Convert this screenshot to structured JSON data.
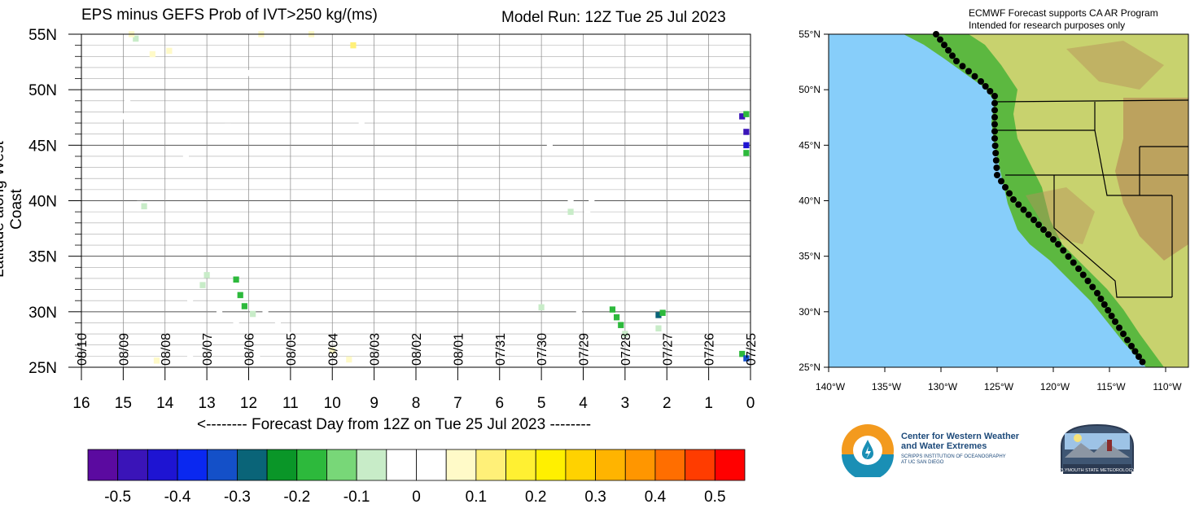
{
  "title_left": "EPS minus GEFS Prob of IVT>250 kg/(ms)",
  "title_right": "Model Run: 12Z Tue 25 Jul 2023",
  "map_note_line1": "ECMWF Forecast supports CA AR Program",
  "map_note_line2": "Intended for research purposes only",
  "logo_cw3e_line1": "Center for Western Weather",
  "logo_cw3e_line2": "and Water Extremes",
  "logo_cw3e_sub1": "SCRIPPS INSTITUTION OF OCEANOGRAPHY",
  "logo_cw3e_sub2": "AT UC SAN DIEGO",
  "logo_psu": "PLYMOUTH STATE METEOROLOGY",
  "map": {
    "lat_labels": [
      "55°N",
      "50°N",
      "45°N",
      "40°N",
      "35°N",
      "30°N",
      "25°N"
    ],
    "lon_labels": [
      "140°W",
      "135°W",
      "130°W",
      "125°W",
      "120°W",
      "115°W",
      "110°W"
    ],
    "colors": {
      "ocean": "#87cefa",
      "lowland": "#5cb840",
      "upland": "#c8d26e",
      "mountain": "#b8915a",
      "coast_points": "#000000"
    }
  },
  "chart_data": {
    "type": "heatmap",
    "title": "EPS minus GEFS Prob of IVT>250 kg/(ms)",
    "subtitle": "Model Run: 12Z Tue 25 Jul 2023",
    "xlabel": "<-------- Forecast Day from 12Z on Tue 25 Jul 2023 --------",
    "ylabel": "Latitude along West Coast",
    "x_ticks": [
      "16",
      "15",
      "14",
      "13",
      "12",
      "11",
      "10",
      "9",
      "8",
      "7",
      "6",
      "5",
      "4",
      "3",
      "2",
      "1",
      "0"
    ],
    "y_ticks": [
      "55N",
      "50N",
      "45N",
      "40N",
      "35N",
      "30N",
      "25N"
    ],
    "xlim": [
      16,
      0
    ],
    "ylim": [
      25,
      55
    ],
    "date_labels": [
      {
        "day": 15,
        "label": "08/09"
      },
      {
        "day": 14,
        "label": "08/08"
      },
      {
        "day": 13,
        "label": "08/07"
      },
      {
        "day": 12,
        "label": "08/06"
      },
      {
        "day": 11,
        "label": "08/05"
      },
      {
        "day": 10,
        "label": "08/04"
      },
      {
        "day": 9,
        "label": "08/03"
      },
      {
        "day": 8,
        "label": "08/02"
      },
      {
        "day": 7,
        "label": "08/01"
      },
      {
        "day": 6,
        "label": "07/31"
      },
      {
        "day": 5,
        "label": "07/30"
      },
      {
        "day": 4,
        "label": "07/29"
      },
      {
        "day": 3,
        "label": "07/28"
      },
      {
        "day": 2,
        "label": "07/27"
      },
      {
        "day": 1,
        "label": "07/26"
      },
      {
        "day": 0,
        "label": "07/25"
      },
      {
        "day": 16,
        "label": "08/10"
      }
    ],
    "colorbar": {
      "labels": [
        "-0.5",
        "-0.4",
        "-0.3",
        "-0.2",
        "-0.1",
        "0",
        "0.1",
        "0.2",
        "0.3",
        "0.4",
        "0.5"
      ],
      "colors": [
        "#5b0aa0",
        "#3a14b8",
        "#1e14d2",
        "#0a28f0",
        "#1450c8",
        "#0a6478",
        "#0a9628",
        "#2db93c",
        "#78d778",
        "#c8ecc8",
        "#ffffff",
        "#ffffff",
        "#fffac8",
        "#fff078",
        "#fff032",
        "#fff000",
        "#ffd200",
        "#ffb400",
        "#ff9600",
        "#ff6e00",
        "#ff3c00",
        "#ff0000"
      ]
    },
    "cells": [
      {
        "day": 15.0,
        "lat": 47.6,
        "value": -0.05
      },
      {
        "day": 14.9,
        "lat": 49.0,
        "value": -0.05
      },
      {
        "day": 14.2,
        "lat": 49.3,
        "value": -0.05
      },
      {
        "day": 13.5,
        "lat": 44.2,
        "value": -0.05
      },
      {
        "day": 14.7,
        "lat": 54.6,
        "value": -0.1
      },
      {
        "day": 14.8,
        "lat": 55.0,
        "value": 0.05
      },
      {
        "day": 14.3,
        "lat": 53.2,
        "value": 0.05
      },
      {
        "day": 13.9,
        "lat": 53.5,
        "value": 0.05
      },
      {
        "day": 12.8,
        "lat": 54.5,
        "value": -0.05
      },
      {
        "day": 12.0,
        "lat": 51.5,
        "value": -0.05
      },
      {
        "day": 11.7,
        "lat": 55.0,
        "value": 0.05
      },
      {
        "day": 10.5,
        "lat": 55.0,
        "value": 0.05
      },
      {
        "day": 9.5,
        "lat": 54.0,
        "value": 0.1
      },
      {
        "day": 8.4,
        "lat": 51.5,
        "value": -0.05
      },
      {
        "day": 11.3,
        "lat": 51.5,
        "value": -0.05
      },
      {
        "day": 12.5,
        "lat": 46.7,
        "value": -0.05
      },
      {
        "day": 14.6,
        "lat": 40.3,
        "value": -0.05
      },
      {
        "day": 14.5,
        "lat": 39.5,
        "value": -0.1
      },
      {
        "day": 14.6,
        "lat": 38.7,
        "value": -0.05
      },
      {
        "day": 5.8,
        "lat": 38.6,
        "value": -0.05
      },
      {
        "day": 4.3,
        "lat": 39.8,
        "value": -0.05
      },
      {
        "day": 4.3,
        "lat": 39.0,
        "value": -0.1
      },
      {
        "day": 3.8,
        "lat": 40.2,
        "value": -0.05
      },
      {
        "day": 3.9,
        "lat": 38.9,
        "value": -0.05
      },
      {
        "day": 4.8,
        "lat": 45.2,
        "value": -0.05
      },
      {
        "day": 9.3,
        "lat": 47.2,
        "value": -0.05
      },
      {
        "day": 13.0,
        "lat": 33.3,
        "value": -0.1
      },
      {
        "day": 13.1,
        "lat": 32.4,
        "value": -0.1
      },
      {
        "day": 12.3,
        "lat": 32.9,
        "value": -0.2
      },
      {
        "day": 12.2,
        "lat": 31.5,
        "value": -0.2
      },
      {
        "day": 12.1,
        "lat": 30.5,
        "value": -0.2
      },
      {
        "day": 11.9,
        "lat": 29.8,
        "value": -0.1
      },
      {
        "day": 13.4,
        "lat": 31.0,
        "value": -0.05
      },
      {
        "day": 12.7,
        "lat": 30.2,
        "value": -0.05
      },
      {
        "day": 11.6,
        "lat": 30.2,
        "value": -0.05
      },
      {
        "day": 11.3,
        "lat": 29.2,
        "value": -0.05
      },
      {
        "day": 12.3,
        "lat": 28.8,
        "value": -0.05
      },
      {
        "day": 11.0,
        "lat": 27.9,
        "value": -0.05
      },
      {
        "day": 10.2,
        "lat": 26.3,
        "value": -0.05
      },
      {
        "day": 11.8,
        "lat": 26.1,
        "value": -0.05
      },
      {
        "day": 13.4,
        "lat": 26.2,
        "value": -0.05
      },
      {
        "day": 14.2,
        "lat": 25.6,
        "value": 0.05
      },
      {
        "day": 9.6,
        "lat": 25.7,
        "value": 0.05
      },
      {
        "day": 10.0,
        "lat": 26.5,
        "value": 0.05
      },
      {
        "day": 5.0,
        "lat": 30.4,
        "value": -0.1
      },
      {
        "day": 4.1,
        "lat": 30.1,
        "value": -0.05
      },
      {
        "day": 3.3,
        "lat": 30.2,
        "value": -0.2
      },
      {
        "day": 3.2,
        "lat": 29.5,
        "value": -0.2
      },
      {
        "day": 3.1,
        "lat": 28.8,
        "value": -0.2
      },
      {
        "day": 3.0,
        "lat": 28.0,
        "value": -0.1
      },
      {
        "day": 2.2,
        "lat": 29.7,
        "value": -0.3
      },
      {
        "day": 2.1,
        "lat": 29.9,
        "value": -0.2
      },
      {
        "day": 2.2,
        "lat": 28.5,
        "value": -0.1
      },
      {
        "day": 1.2,
        "lat": 26.4,
        "value": -0.05
      },
      {
        "day": 0.2,
        "lat": 47.6,
        "value": -0.5
      },
      {
        "day": 0.1,
        "lat": 46.2,
        "value": -0.5
      },
      {
        "day": 0.1,
        "lat": 45.0,
        "value": -0.45
      },
      {
        "day": 0.1,
        "lat": 47.8,
        "value": -0.2
      },
      {
        "day": 0.1,
        "lat": 44.3,
        "value": -0.2
      },
      {
        "day": 0.2,
        "lat": 26.2,
        "value": -0.2
      },
      {
        "day": 0.1,
        "lat": 25.8,
        "value": -0.35
      }
    ]
  }
}
